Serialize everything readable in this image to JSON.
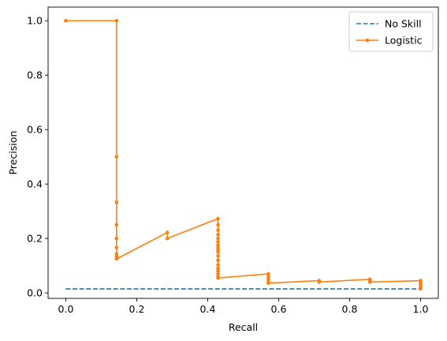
{
  "chart_data": {
    "type": "line",
    "xlabel": "Recall",
    "ylabel": "Precision",
    "xlim": [
      -0.05,
      1.05
    ],
    "ylim": [
      -0.02,
      1.05
    ],
    "xticks": [
      "0.0",
      "0.2",
      "0.4",
      "0.6",
      "0.8",
      "1.0"
    ],
    "yticks": [
      "0.0",
      "0.2",
      "0.4",
      "0.6",
      "0.8",
      "1.0"
    ],
    "grid": false,
    "legend": "top-right",
    "series": [
      {
        "name": "No Skill",
        "style": "dashed",
        "color": "#1f77b4",
        "x": [
          0,
          1
        ],
        "y": [
          0.015,
          0.015
        ]
      },
      {
        "name": "Logistic",
        "style": "solid-with-dots",
        "color": "#ff7f0e",
        "x": [
          0,
          0.143,
          0.143,
          0.143,
          0.143,
          0.143,
          0.143,
          0.143,
          0.143,
          0.143,
          0.286,
          0.286,
          0.429,
          0.429,
          0.429,
          0.429,
          0.429,
          0.429,
          0.429,
          0.429,
          0.429,
          0.429,
          0.429,
          0.429,
          0.429,
          0.429,
          0.429,
          0.429,
          0.429,
          0.429,
          0.571,
          0.571,
          0.571,
          0.571,
          0.571,
          0.714,
          0.714,
          0.857,
          0.857,
          0.857,
          1.0,
          1.0,
          1.0,
          1.0,
          1.0,
          1.0,
          1.0
        ],
        "y": [
          1.0,
          1.0,
          0.5,
          0.333,
          0.25,
          0.2,
          0.167,
          0.143,
          0.133,
          0.125,
          0.222,
          0.2,
          0.273,
          0.25,
          0.231,
          0.214,
          0.2,
          0.188,
          0.176,
          0.167,
          0.158,
          0.15,
          0.136,
          0.12,
          0.103,
          0.09,
          0.08,
          0.07,
          0.06,
          0.055,
          0.07,
          0.06,
          0.05,
          0.04,
          0.036,
          0.045,
          0.04,
          0.05,
          0.045,
          0.04,
          0.045,
          0.04,
          0.035,
          0.03,
          0.025,
          0.02,
          0.015
        ]
      }
    ]
  }
}
